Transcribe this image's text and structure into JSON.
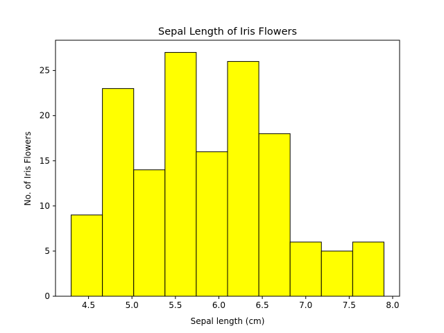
{
  "chart_data": {
    "type": "bar",
    "title": "Sepal Length of Iris Flowers",
    "xlabel": "Sepal length (cm)",
    "ylabel": "No. of Iris Flowers",
    "bin_edges": [
      4.3,
      4.66,
      5.02,
      5.38,
      5.74,
      6.1,
      6.46,
      6.82,
      7.18,
      7.54,
      7.9
    ],
    "values": [
      9,
      23,
      14,
      27,
      16,
      26,
      18,
      6,
      5,
      6
    ],
    "xlim": [
      4.12,
      8.08
    ],
    "ylim": [
      0,
      28.35
    ],
    "xticks": [
      4.5,
      5.0,
      5.5,
      6.0,
      6.5,
      7.0,
      7.5,
      8.0
    ],
    "xtick_labels": [
      "4.5",
      "5.0",
      "5.5",
      "6.0",
      "6.5",
      "7.0",
      "7.5",
      "8.0"
    ],
    "yticks": [
      0,
      5,
      10,
      15,
      20,
      25
    ],
    "ytick_labels": [
      "0",
      "5",
      "10",
      "15",
      "20",
      "25"
    ],
    "bar_color": "#ffff00",
    "edge_color": "#000000",
    "grid": false,
    "legend": "none"
  }
}
